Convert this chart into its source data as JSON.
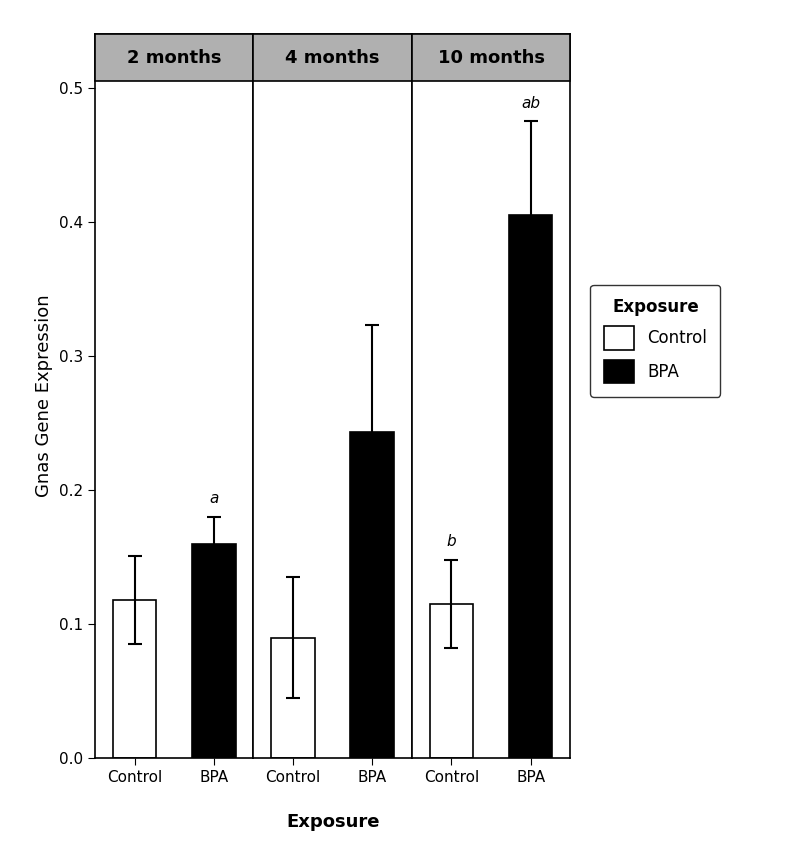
{
  "ylabel": "Gnas Gene Expression",
  "xlabel": "Exposure",
  "panels": [
    "2 months",
    "4 months",
    "10 months"
  ],
  "categories": [
    "Control",
    "BPA"
  ],
  "bar_values": [
    [
      0.118,
      0.16
    ],
    [
      0.09,
      0.243
    ],
    [
      0.115,
      0.405
    ]
  ],
  "bar_errors": [
    [
      0.033,
      0.02
    ],
    [
      0.045,
      0.08
    ],
    [
      0.033,
      0.07
    ]
  ],
  "bar_colors": [
    "white",
    "black"
  ],
  "bar_edgecolor": "black",
  "ylim": [
    0,
    0.54
  ],
  "yticks": [
    0.0,
    0.1,
    0.2,
    0.3,
    0.4,
    0.5
  ],
  "annotation_map": {
    "0_1": "a",
    "2_0": "b",
    "2_1": "ab"
  },
  "panel_title_bg": "#b0b0b0",
  "panel_title_fontsize": 13,
  "legend_title": "Exposure",
  "legend_labels": [
    "Control",
    "BPA"
  ],
  "axis_label_fontsize": 13,
  "tick_fontsize": 11,
  "annotation_fontsize": 11,
  "bar_width": 0.55,
  "x_positions": [
    0.8,
    1.8
  ],
  "xlim": [
    0.3,
    2.3
  ],
  "background_color": "white"
}
